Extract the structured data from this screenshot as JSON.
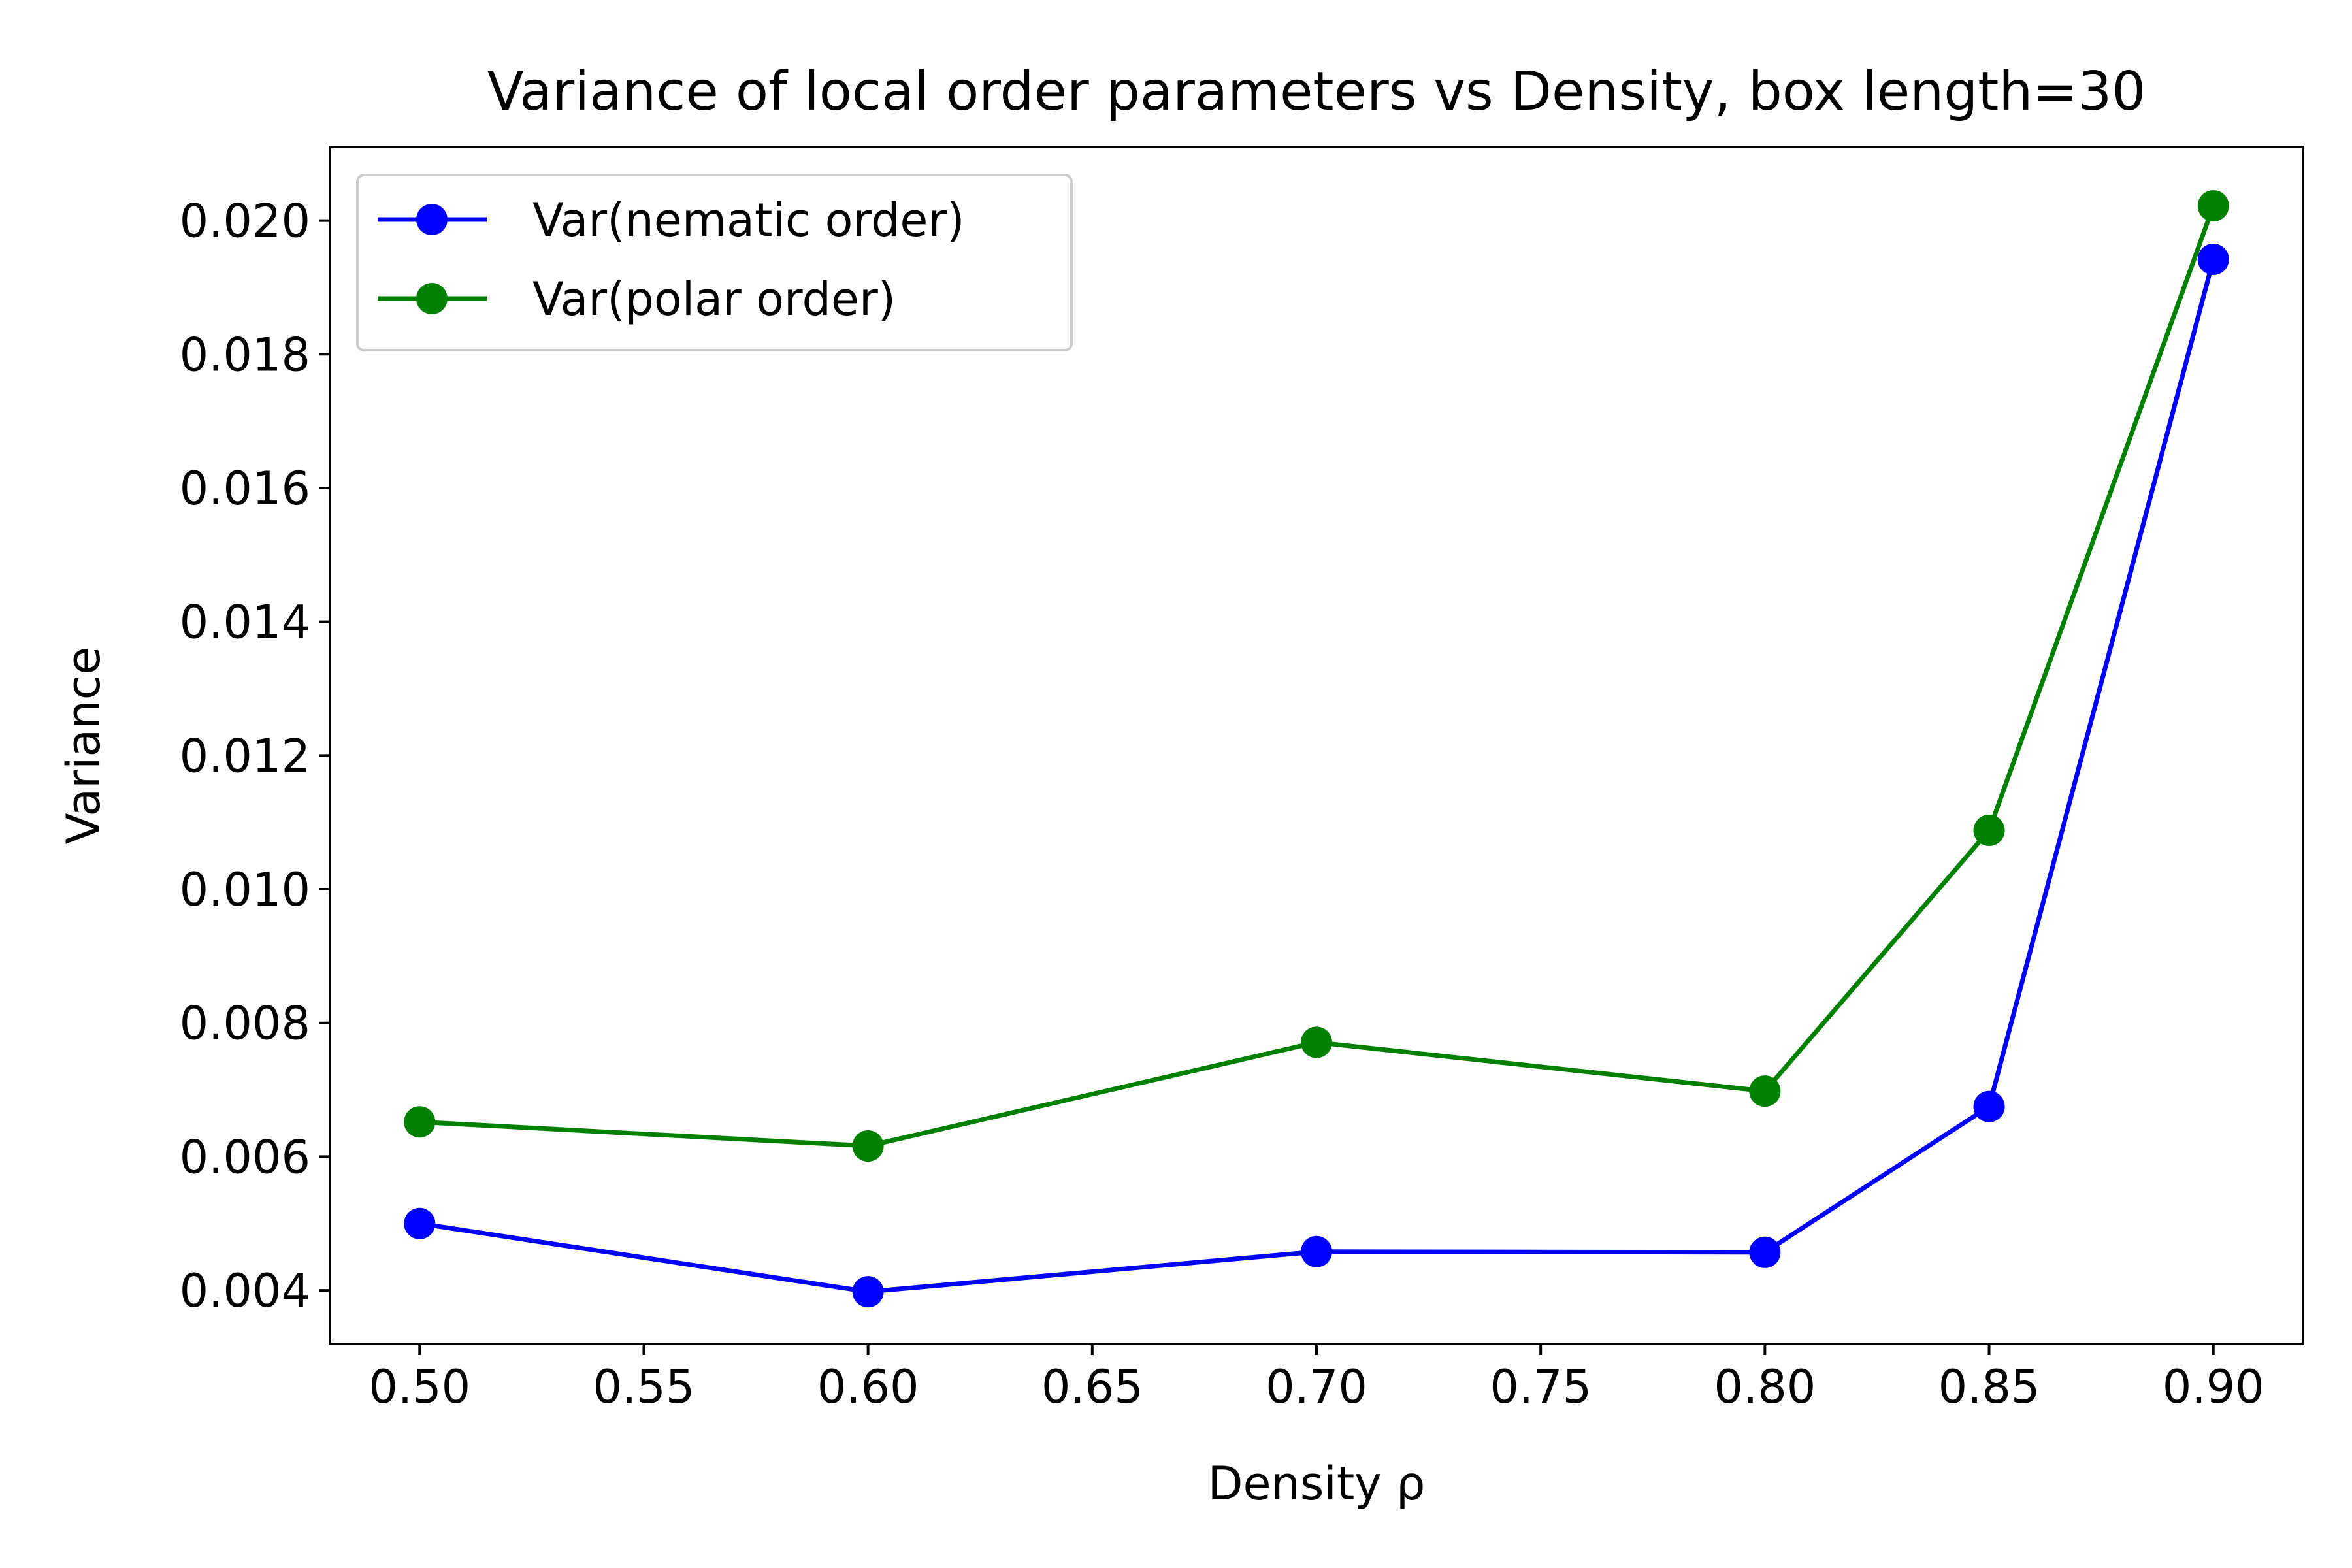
{
  "chart_data": {
    "type": "line",
    "title": "Variance of local order parameters vs Density, box length=30",
    "xlabel": "Density ρ",
    "ylabel": "Variance",
    "xlim": [
      0.48,
      0.92
    ],
    "ylim": [
      0.0032,
      0.0211
    ],
    "xticks": [
      "0.50",
      "0.55",
      "0.60",
      "0.65",
      "0.70",
      "0.75",
      "0.80",
      "0.85",
      "0.90"
    ],
    "yticks": [
      "0.004",
      "0.006",
      "0.008",
      "0.010",
      "0.012",
      "0.014",
      "0.016",
      "0.018",
      "0.020"
    ],
    "x": [
      0.5,
      0.6,
      0.7,
      0.8,
      0.85,
      0.9
    ],
    "series": [
      {
        "name": "Var(nematic order)",
        "color": "#0000ff",
        "marker": "circle",
        "values": [
          0.005,
          0.00398,
          0.00458,
          0.00457,
          0.00675,
          0.01942
        ]
      },
      {
        "name": "Var(polar order)",
        "color": "#008000",
        "marker": "circle",
        "values": [
          0.00652,
          0.00616,
          0.00771,
          0.00698,
          0.01088,
          0.02022
        ]
      }
    ],
    "grid": false,
    "legend": "top-left"
  }
}
